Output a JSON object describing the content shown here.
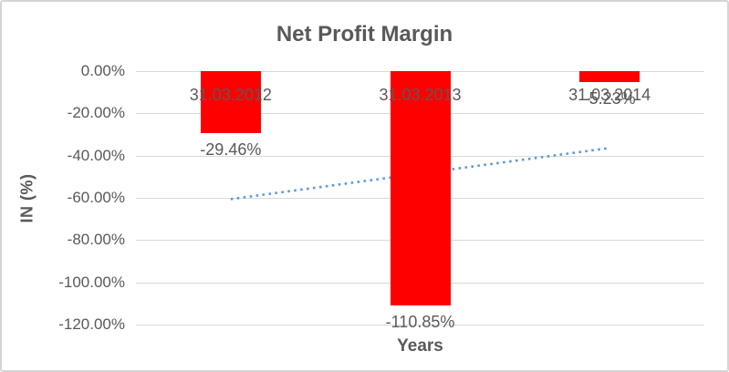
{
  "chart_data": {
    "type": "bar",
    "title": "Net Profit Margin",
    "xlabel": "Years",
    "ylabel": "IN (%)",
    "categories": [
      "31.03.2012",
      "31.03.2013",
      "31.03.2014"
    ],
    "values": [
      -29.46,
      -110.85,
      -5.23
    ],
    "value_labels": [
      "-29.46%",
      "-110.85%",
      "-5.23%"
    ],
    "y_ticks": [
      "0.00%",
      "-20.00%",
      "-40.00%",
      "-60.00%",
      "-80.00%",
      "-100.00%",
      "-120.00%"
    ],
    "y_tick_values": [
      0,
      -20,
      -40,
      -60,
      -80,
      -100,
      -120
    ],
    "ylim": [
      -120,
      0
    ],
    "grid": true,
    "legend": false,
    "bar_color": "#FF0000",
    "text_color": "#595959",
    "gridline_color": "#D9D9D9",
    "trendline": {
      "type": "linear",
      "style": "dotted",
      "color": "#5B9BD5",
      "start_value": -60.6,
      "end_value": -36.4
    }
  }
}
